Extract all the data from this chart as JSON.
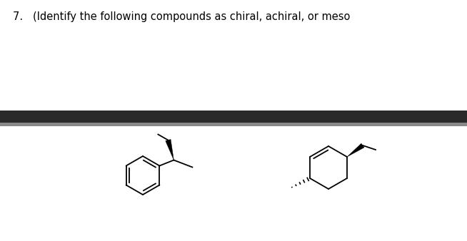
{
  "title_text": "7.   (Identify the following compounds as chiral, achiral, or meso",
  "title_fontsize": 10.5,
  "title_color": "#000000",
  "background_color": "#ffffff",
  "bar_dark": "#2a2a2a",
  "bar_gray": "#888888",
  "fig_width": 6.54,
  "fig_height": 3.38,
  "dpi": 100
}
